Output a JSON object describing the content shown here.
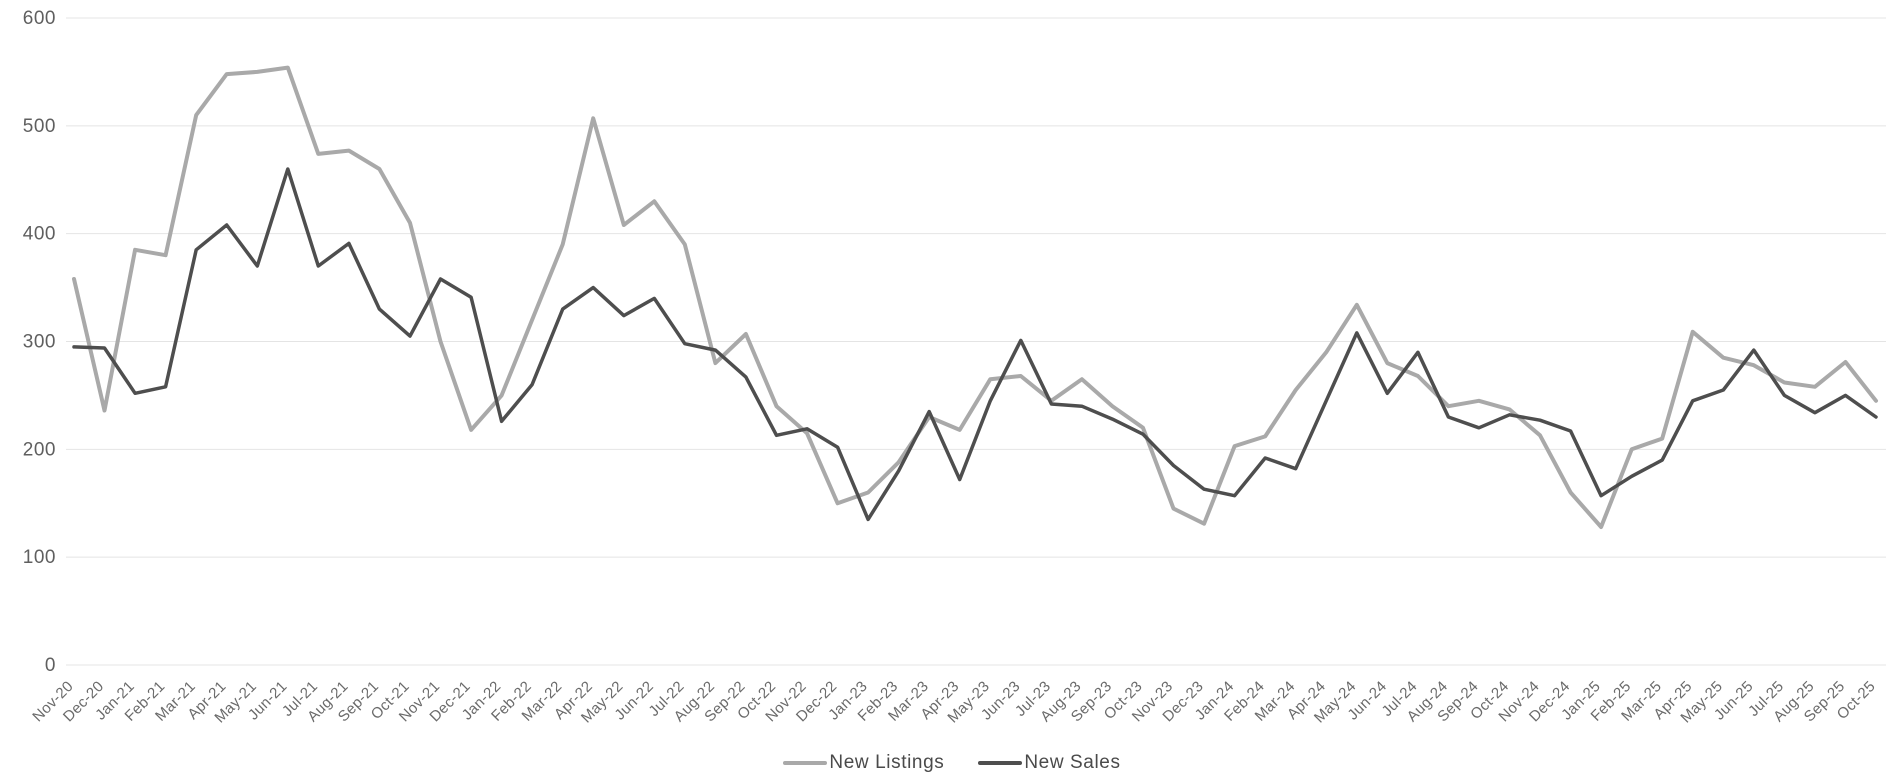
{
  "chart_data": {
    "type": "line",
    "title": "",
    "xlabel": "",
    "ylabel": "",
    "ylim": [
      0,
      600
    ],
    "yticks": [
      0,
      100,
      200,
      300,
      400,
      500,
      600
    ],
    "grid": true,
    "legend_position": "bottom",
    "x": [
      "Nov-20",
      "Dec-20",
      "Jan-21",
      "Feb-21",
      "Mar-21",
      "Apr-21",
      "May-21",
      "Jun-21",
      "Jul-21",
      "Aug-21",
      "Sep-21",
      "Oct-21",
      "Nov-21",
      "Dec-21",
      "Jan-22",
      "Feb-22",
      "Mar-22",
      "Apr-22",
      "May-22",
      "Jun-22",
      "Jul-22",
      "Aug-22",
      "Sep-22",
      "Oct-22",
      "Nov-22",
      "Dec-22",
      "Jan-23",
      "Feb-23",
      "Mar-23",
      "Apr-23",
      "May-23",
      "Jun-23",
      "Jul-23",
      "Aug-23",
      "Sep-23",
      "Oct-23",
      "Nov-23",
      "Dec-23",
      "Jan-24",
      "Feb-24",
      "Mar-24",
      "Apr-24",
      "May-24",
      "Jun-24",
      "Jul-24",
      "Aug-24",
      "Sep-24",
      "Oct-24",
      "Nov-24",
      "Dec-24",
      "Jan-25",
      "Feb-25",
      "Mar-25",
      "Apr-25",
      "May-25",
      "Jun-25",
      "Jul-25",
      "Aug-25",
      "Sep-25",
      "Oct-25"
    ],
    "series": [
      {
        "name": "New Listings",
        "color": "#a9a9a9",
        "stroke_width": 4,
        "values": [
          358,
          236,
          385,
          380,
          510,
          548,
          550,
          554,
          474,
          477,
          460,
          410,
          300,
          218,
          250,
          320,
          390,
          507,
          408,
          430,
          390,
          280,
          307,
          240,
          215,
          150,
          160,
          188,
          230,
          218,
          265,
          268,
          245,
          265,
          240,
          220,
          145,
          131,
          203,
          212,
          255,
          290,
          334,
          280,
          268,
          240,
          245,
          237,
          213,
          160,
          128,
          200,
          210,
          309,
          285,
          278,
          262,
          258,
          281,
          245
        ]
      },
      {
        "name": "New Sales",
        "color": "#4e4e4e",
        "stroke_width": 3.5,
        "values": [
          295,
          294,
          252,
          258,
          385,
          408,
          370,
          460,
          370,
          391,
          330,
          305,
          358,
          341,
          226,
          260,
          330,
          350,
          324,
          340,
          298,
          292,
          267,
          213,
          219,
          202,
          135,
          180,
          235,
          172,
          245,
          301,
          242,
          240,
          228,
          214,
          185,
          163,
          157,
          192,
          182,
          245,
          308,
          252,
          290,
          230,
          220,
          232,
          227,
          217,
          157,
          175,
          190,
          245,
          255,
          292,
          250,
          234,
          250,
          230
        ]
      }
    ]
  },
  "colors": {
    "background": "#ffffff",
    "grid": "#e4e4e4",
    "axis_text": "#5f5f5f"
  }
}
